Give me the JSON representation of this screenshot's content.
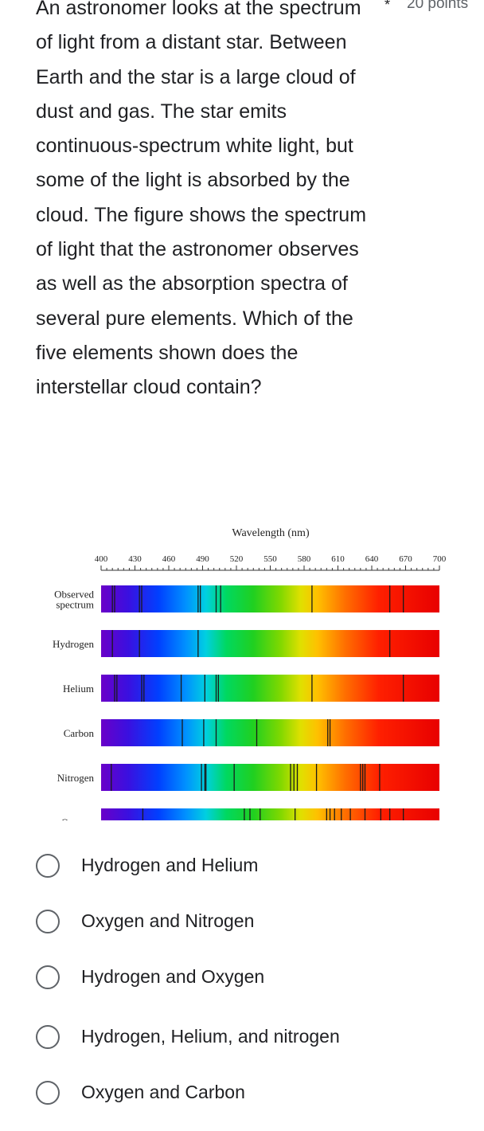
{
  "question": {
    "text": "An astronomer looks at the spectrum of light from a distant star. Between Earth and the star is a large cloud of dust and gas. The star emits continuous-spectrum white light, but some of the light is absorbed by the cloud. The figure shows the spectrum of light that the astronomer observes as well as the absorption spectra of several pure elements. Which of the five elements shown does the interstellar cloud contain?",
    "required_marker": "*",
    "points": "20 points"
  },
  "figure": {
    "axis_title": "Wavelength (nm)",
    "ticks": [
      400,
      430,
      460,
      490,
      520,
      550,
      580,
      610,
      640,
      670,
      700
    ],
    "axis_range": [
      400,
      700
    ],
    "spectra": [
      {
        "label_lines": [
          "Observed",
          "spectrum"
        ],
        "lines_nm": [
          410,
          412,
          434,
          436,
          486,
          488,
          502,
          506,
          587,
          656,
          668
        ]
      },
      {
        "label_lines": [
          "Hydrogen"
        ],
        "lines_nm": [
          410,
          434,
          486,
          656
        ]
      },
      {
        "label_lines": [
          "Helium"
        ],
        "lines_nm": [
          412,
          414,
          436,
          438,
          471,
          492,
          502,
          504,
          587,
          668
        ]
      },
      {
        "label_lines": [
          "Carbon"
        ],
        "lines_nm": [
          472,
          491,
          502,
          538,
          601,
          603
        ]
      },
      {
        "label_lines": [
          "Nitrogen"
        ],
        "lines_nm": [
          409,
          489,
          492,
          493,
          518,
          568,
          571,
          574,
          591,
          630,
          632,
          634,
          647
        ]
      },
      {
        "label_lines": [
          "Oxygen"
        ],
        "lines_nm": [
          437,
          527,
          532,
          541,
          572,
          600,
          603,
          607,
          613,
          621,
          634,
          648,
          656,
          668
        ]
      }
    ]
  },
  "options": [
    {
      "label": "Hydrogen and Helium"
    },
    {
      "label": "Oxygen and Nitrogen"
    },
    {
      "label": "Hydrogen and Oxygen"
    },
    {
      "label": "Hydrogen, Helium, and nitrogen"
    },
    {
      "label": "Oxygen and Carbon"
    }
  ]
}
